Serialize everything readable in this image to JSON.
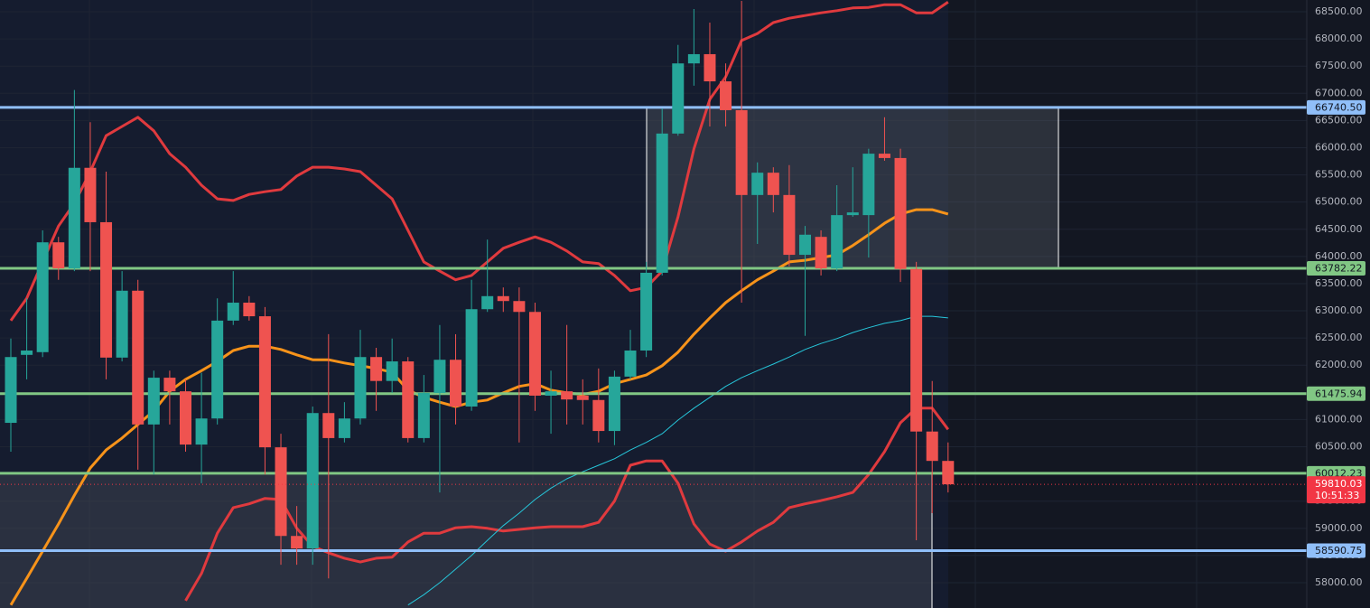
{
  "chart_data": {
    "type": "candlestick",
    "ylim": [
      57535,
      68716
    ],
    "yticks": [
      {
        "value": 58000,
        "label": "58000.00"
      },
      {
        "value": 58500,
        "label": "58500.00"
      },
      {
        "value": 59000,
        "label": "59000.00"
      },
      {
        "value": 59500,
        "label": "59500.00"
      },
      {
        "value": 60000,
        "label": "60000.00"
      },
      {
        "value": 60500,
        "label": "60500.00"
      },
      {
        "value": 61000,
        "label": "61000.00"
      },
      {
        "value": 61500,
        "label": "61500.00"
      },
      {
        "value": 62000,
        "label": "62000.00"
      },
      {
        "value": 62500,
        "label": "62500.00"
      },
      {
        "value": 63000,
        "label": "63000.00"
      },
      {
        "value": 63500,
        "label": "63500.00"
      },
      {
        "value": 64000,
        "label": "64000.00"
      },
      {
        "value": 64500,
        "label": "64500.00"
      },
      {
        "value": 65000,
        "label": "65000.00"
      },
      {
        "value": 65500,
        "label": "65500.00"
      },
      {
        "value": 66000,
        "label": "66000.00"
      },
      {
        "value": 66500,
        "label": "66500.00"
      },
      {
        "value": 67000,
        "label": "67000.00"
      },
      {
        "value": 67500,
        "label": "67500.00"
      },
      {
        "value": 68000,
        "label": "68000.00"
      },
      {
        "value": 68500,
        "label": "68500.00"
      }
    ],
    "grid": true,
    "up_color": "#26a69a",
    "down_color": "#ef5350",
    "open": [
      60940,
      62190,
      62240,
      64260,
      63780,
      65630,
      64630,
      62140,
      63370,
      60910,
      61770,
      61520,
      60540,
      61020,
      62820,
      63150,
      62900,
      60490,
      58860,
      58630,
      61120,
      60660,
      61020,
      62150,
      61710,
      62070,
      60660,
      61490,
      62100,
      61240,
      63030,
      63270,
      63180,
      62980,
      61440,
      61520,
      61440,
      61360,
      60790,
      61790,
      62270,
      63700,
      66260,
      67550,
      67720,
      67220,
      66690,
      65130,
      65540,
      65130,
      64030,
      64360,
      63780,
      64760,
      64760,
      65890,
      65810,
      63770,
      60780,
      60240
    ],
    "high": [
      62490,
      63230,
      64480,
      64360,
      67060,
      66470,
      65560,
      63730,
      63570,
      61900,
      61900,
      61740,
      61860,
      63230,
      63730,
      63270,
      63070,
      60740,
      59410,
      61240,
      62570,
      61320,
      62650,
      62320,
      62490,
      62150,
      61820,
      62740,
      62570,
      63570,
      64310,
      63430,
      63430,
      63150,
      61900,
      62740,
      61740,
      61940,
      61900,
      62650,
      63900,
      66720,
      67890,
      68550,
      68300,
      67550,
      68700,
      65730,
      65640,
      65680,
      64560,
      64480,
      65310,
      65640,
      65980,
      66560,
      65980,
      63900,
      61710,
      60580
    ],
    "low": [
      60410,
      61740,
      62150,
      63570,
      63730,
      63730,
      61740,
      62070,
      60080,
      59990,
      60910,
      60410,
      59830,
      60910,
      62740,
      62820,
      59990,
      58330,
      58330,
      58330,
      58080,
      60580,
      60910,
      61160,
      61490,
      60580,
      60580,
      59660,
      60910,
      61160,
      62980,
      62980,
      60580,
      61160,
      60740,
      60910,
      60910,
      60580,
      60530,
      61740,
      62150,
      63650,
      66220,
      67140,
      66390,
      66390,
      63150,
      64230,
      64810,
      63820,
      62540,
      63650,
      63730,
      64730,
      63980,
      65760,
      63530,
      58780,
      59280,
      59660
    ],
    "close": [
      62150,
      62270,
      64260,
      63780,
      65630,
      64630,
      62140,
      63370,
      60910,
      61770,
      61520,
      60540,
      61020,
      62820,
      63150,
      62900,
      60490,
      58860,
      58630,
      61120,
      60660,
      61020,
      62150,
      61710,
      62070,
      60660,
      61490,
      62100,
      61240,
      63030,
      63270,
      63180,
      62980,
      61440,
      61520,
      61370,
      61360,
      60790,
      61790,
      62270,
      63700,
      66260,
      67550,
      67720,
      67220,
      66690,
      65130,
      65540,
      65130,
      64030,
      64400,
      63780,
      64760,
      64810,
      65890,
      65810,
      63770,
      60780,
      60240,
      59810.03
    ],
    "series": [
      {
        "color": "#e03a3e",
        "values": [
          62820,
          63230,
          63900,
          64560,
          64980,
          65560,
          66220,
          66390,
          66560,
          66310,
          65890,
          65640,
          65310,
          65060,
          65030,
          65140,
          65190,
          65230,
          65480,
          65640,
          65640,
          65610,
          65560,
          65310,
          65060,
          64480,
          63900,
          63730,
          63570,
          63650,
          63900,
          64150,
          64260,
          64360,
          64260,
          64100,
          63900,
          63870,
          63650,
          63370,
          63430,
          63730,
          64730,
          65980,
          66890,
          67300,
          67970,
          68100,
          68300,
          68380,
          68430,
          68480,
          68520,
          68570,
          68580,
          68630,
          68630,
          68480,
          68480,
          68680
        ]
      },
      {
        "color": "#f7931a",
        "values": [
          57590,
          58080,
          58580,
          59080,
          59610,
          60110,
          60440,
          60660,
          60910,
          61160,
          61520,
          61740,
          61900,
          62070,
          62270,
          62350,
          62350,
          62290,
          62190,
          62100,
          62100,
          62040,
          61990,
          61940,
          61870,
          61540,
          61410,
          61320,
          61240,
          61320,
          61360,
          61490,
          61610,
          61660,
          61540,
          61490,
          61460,
          61520,
          61660,
          61740,
          61820,
          61990,
          62240,
          62570,
          62870,
          63150,
          63370,
          63570,
          63730,
          63900,
          63930,
          63980,
          64030,
          64200,
          64400,
          64610,
          64780,
          64860,
          64860,
          64780
        ]
      },
      {
        "color": "#e03a3e",
        "values": [
          null,
          null,
          null,
          null,
          null,
          null,
          null,
          null,
          null,
          null,
          null,
          57670,
          58170,
          58910,
          59380,
          59450,
          59550,
          59530,
          59000,
          58670,
          58550,
          58450,
          58380,
          58450,
          58470,
          58750,
          58910,
          58910,
          59010,
          59030,
          59000,
          58950,
          58980,
          59010,
          59030,
          59030,
          59030,
          59110,
          59500,
          60160,
          60240,
          60240,
          59830,
          59080,
          58710,
          58580,
          58750,
          58950,
          59110,
          59380,
          59450,
          59510,
          59580,
          59660,
          59990,
          60410,
          60940,
          61210,
          61210,
          60820
        ]
      },
      {
        "color": "#26c6da",
        "values": [
          null,
          null,
          null,
          null,
          null,
          null,
          null,
          null,
          null,
          null,
          null,
          null,
          null,
          null,
          null,
          null,
          null,
          null,
          null,
          null,
          null,
          null,
          null,
          null,
          null,
          57590,
          57780,
          58000,
          58250,
          58500,
          58780,
          59050,
          59280,
          59530,
          59740,
          59910,
          60040,
          60160,
          60280,
          60440,
          60580,
          60740,
          60990,
          61210,
          61410,
          61610,
          61770,
          61900,
          62020,
          62150,
          62290,
          62400,
          62490,
          62600,
          62690,
          62770,
          62820,
          62900,
          62900,
          62870
        ]
      }
    ],
    "levels": {
      "values": [
        66740.5,
        63782.22,
        61475.94,
        60012.23,
        58590.75
      ],
      "value_labels": [
        "66740.50",
        "63782.22",
        "61475.94",
        "60012.23",
        "58590.75"
      ],
      "colors": [
        "#90bff9",
        "#81c784",
        "#81c784",
        "#81c784",
        "#90bff9"
      ]
    },
    "last_price": {
      "value": 59810.03,
      "label": "59810.03",
      "countdown": "10:51:33",
      "color": "#f23645"
    }
  }
}
